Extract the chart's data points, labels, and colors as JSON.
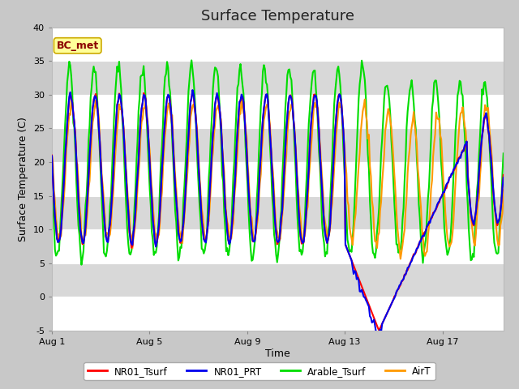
{
  "title": "Surface Temperature",
  "xlabel": "Time",
  "ylabel": "Surface Temperature (C)",
  "ylim": [
    -5,
    40
  ],
  "xlim_days": [
    0,
    18.5
  ],
  "yticks": [
    -5,
    0,
    5,
    10,
    15,
    20,
    25,
    30,
    35,
    40
  ],
  "xtick_positions": [
    0,
    4,
    8,
    12,
    16
  ],
  "xtick_labels": [
    "Aug 1",
    "Aug 5",
    "Aug 9",
    "Aug 13",
    "Aug 17"
  ],
  "series_colors": {
    "NR01_Tsurf": "#FF0000",
    "NR01_PRT": "#0000EE",
    "Arable_Tsurf": "#00DD00",
    "AirT": "#FF9900"
  },
  "annotation_text": "BC_met",
  "annotation_color": "#8B0000",
  "annotation_bg": "#FFFF99",
  "annotation_edge": "#CCAA00",
  "fig_bg": "#C8C8C8",
  "plot_bg": "#E8E8E8",
  "band_colors": [
    "#D8D8D8",
    "#E8E8E8"
  ],
  "title_fontsize": 13,
  "axis_fontsize": 9,
  "tick_fontsize": 8,
  "linewidth": 1.5
}
